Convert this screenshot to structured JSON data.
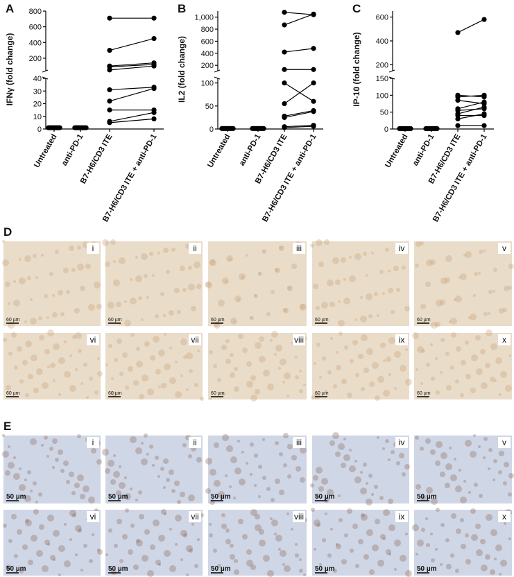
{
  "chart_data": [
    {
      "type": "paired-dot",
      "panel": "A",
      "ylabel": "IFNγ (fold change)",
      "categories": [
        "Untreated",
        "anti-PD-1",
        "B7-H6/CD3 ITE",
        "B7-H6/CD3 ITE + anti-PD-1"
      ],
      "segments": [
        {
          "ylim": [
            0,
            40
          ],
          "yticks": [
            0,
            10,
            20,
            30,
            40
          ]
        },
        {
          "ylim": [
            40,
            800
          ],
          "yticks": [
            200,
            400,
            600,
            800
          ]
        }
      ],
      "values": [
        [
          1,
          1,
          1,
          1,
          1,
          1,
          1,
          1,
          1,
          1
        ],
        [
          1,
          1,
          1,
          1,
          1,
          1,
          1,
          1,
          1,
          1
        ],
        [
          710,
          300,
          100,
          90,
          50,
          31,
          22,
          15,
          6,
          5
        ],
        [
          710,
          450,
          140,
          120,
          100,
          33,
          32,
          15,
          13,
          8
        ]
      ],
      "color": "#000000"
    },
    {
      "type": "paired-dot",
      "panel": "B",
      "ylabel": "IL2 (fold change)",
      "categories": [
        "Untreated",
        "anti-PD-1",
        "B7-H6/CD3 ITE",
        "B7-H6/CD3 ITE + anti-PD-1"
      ],
      "segments": [
        {
          "ylim": [
            0,
            110
          ],
          "yticks": [
            0,
            50,
            100
          ]
        },
        {
          "ylim": [
            110,
            1100
          ],
          "yticks": [
            200,
            400,
            600,
            800,
            {
              "value": 1000,
              "label": "1,000"
            }
          ]
        }
      ],
      "values": [
        [
          1,
          1,
          1,
          1,
          1,
          1,
          1,
          1,
          1,
          1
        ],
        [
          1,
          1,
          1,
          1,
          1,
          1,
          1,
          1,
          1,
          1
        ],
        [
          1080,
          870,
          420,
          130,
          100,
          55,
          28,
          25,
          5,
          3
        ],
        [
          1040,
          1050,
          480,
          130,
          60,
          100,
          40,
          38,
          8,
          6
        ]
      ],
      "color": "#000000"
    },
    {
      "type": "paired-dot",
      "panel": "C",
      "ylabel": "IP-10 (fold change)",
      "categories": [
        "Untreated",
        "anti-PD-1",
        "B7-H6/CD3 ITE",
        "B7-H6/CD3 ITE + anti-PD-1"
      ],
      "segments": [
        {
          "ylim": [
            0,
            150
          ],
          "yticks": [
            0,
            50,
            100,
            150
          ]
        },
        {
          "ylim": [
            150,
            650
          ],
          "yticks": [
            200,
            400,
            600
          ]
        }
      ],
      "values": [
        [
          1,
          1,
          1,
          1,
          1,
          1,
          1,
          1,
          1,
          1
        ],
        [
          1,
          1,
          1,
          1,
          1,
          1,
          1,
          1,
          1,
          1
        ],
        [
          470,
          100,
          95,
          85,
          60,
          55,
          45,
          40,
          30,
          10
        ],
        [
          580,
          95,
          100,
          75,
          80,
          60,
          65,
          40,
          45,
          10
        ]
      ],
      "color": "#000000"
    }
  ],
  "panels": [
    {
      "label": "D",
      "scale": "60 µm",
      "images": [
        "i",
        "ii",
        "iii",
        "iv",
        "v",
        "vi",
        "vii",
        "viii",
        "ix",
        "x"
      ]
    },
    {
      "label": "E",
      "scale": "50 µm",
      "images": [
        "i",
        "ii",
        "iii",
        "iv",
        "v",
        "vi",
        "vii",
        "viii",
        "ix",
        "x"
      ]
    }
  ]
}
